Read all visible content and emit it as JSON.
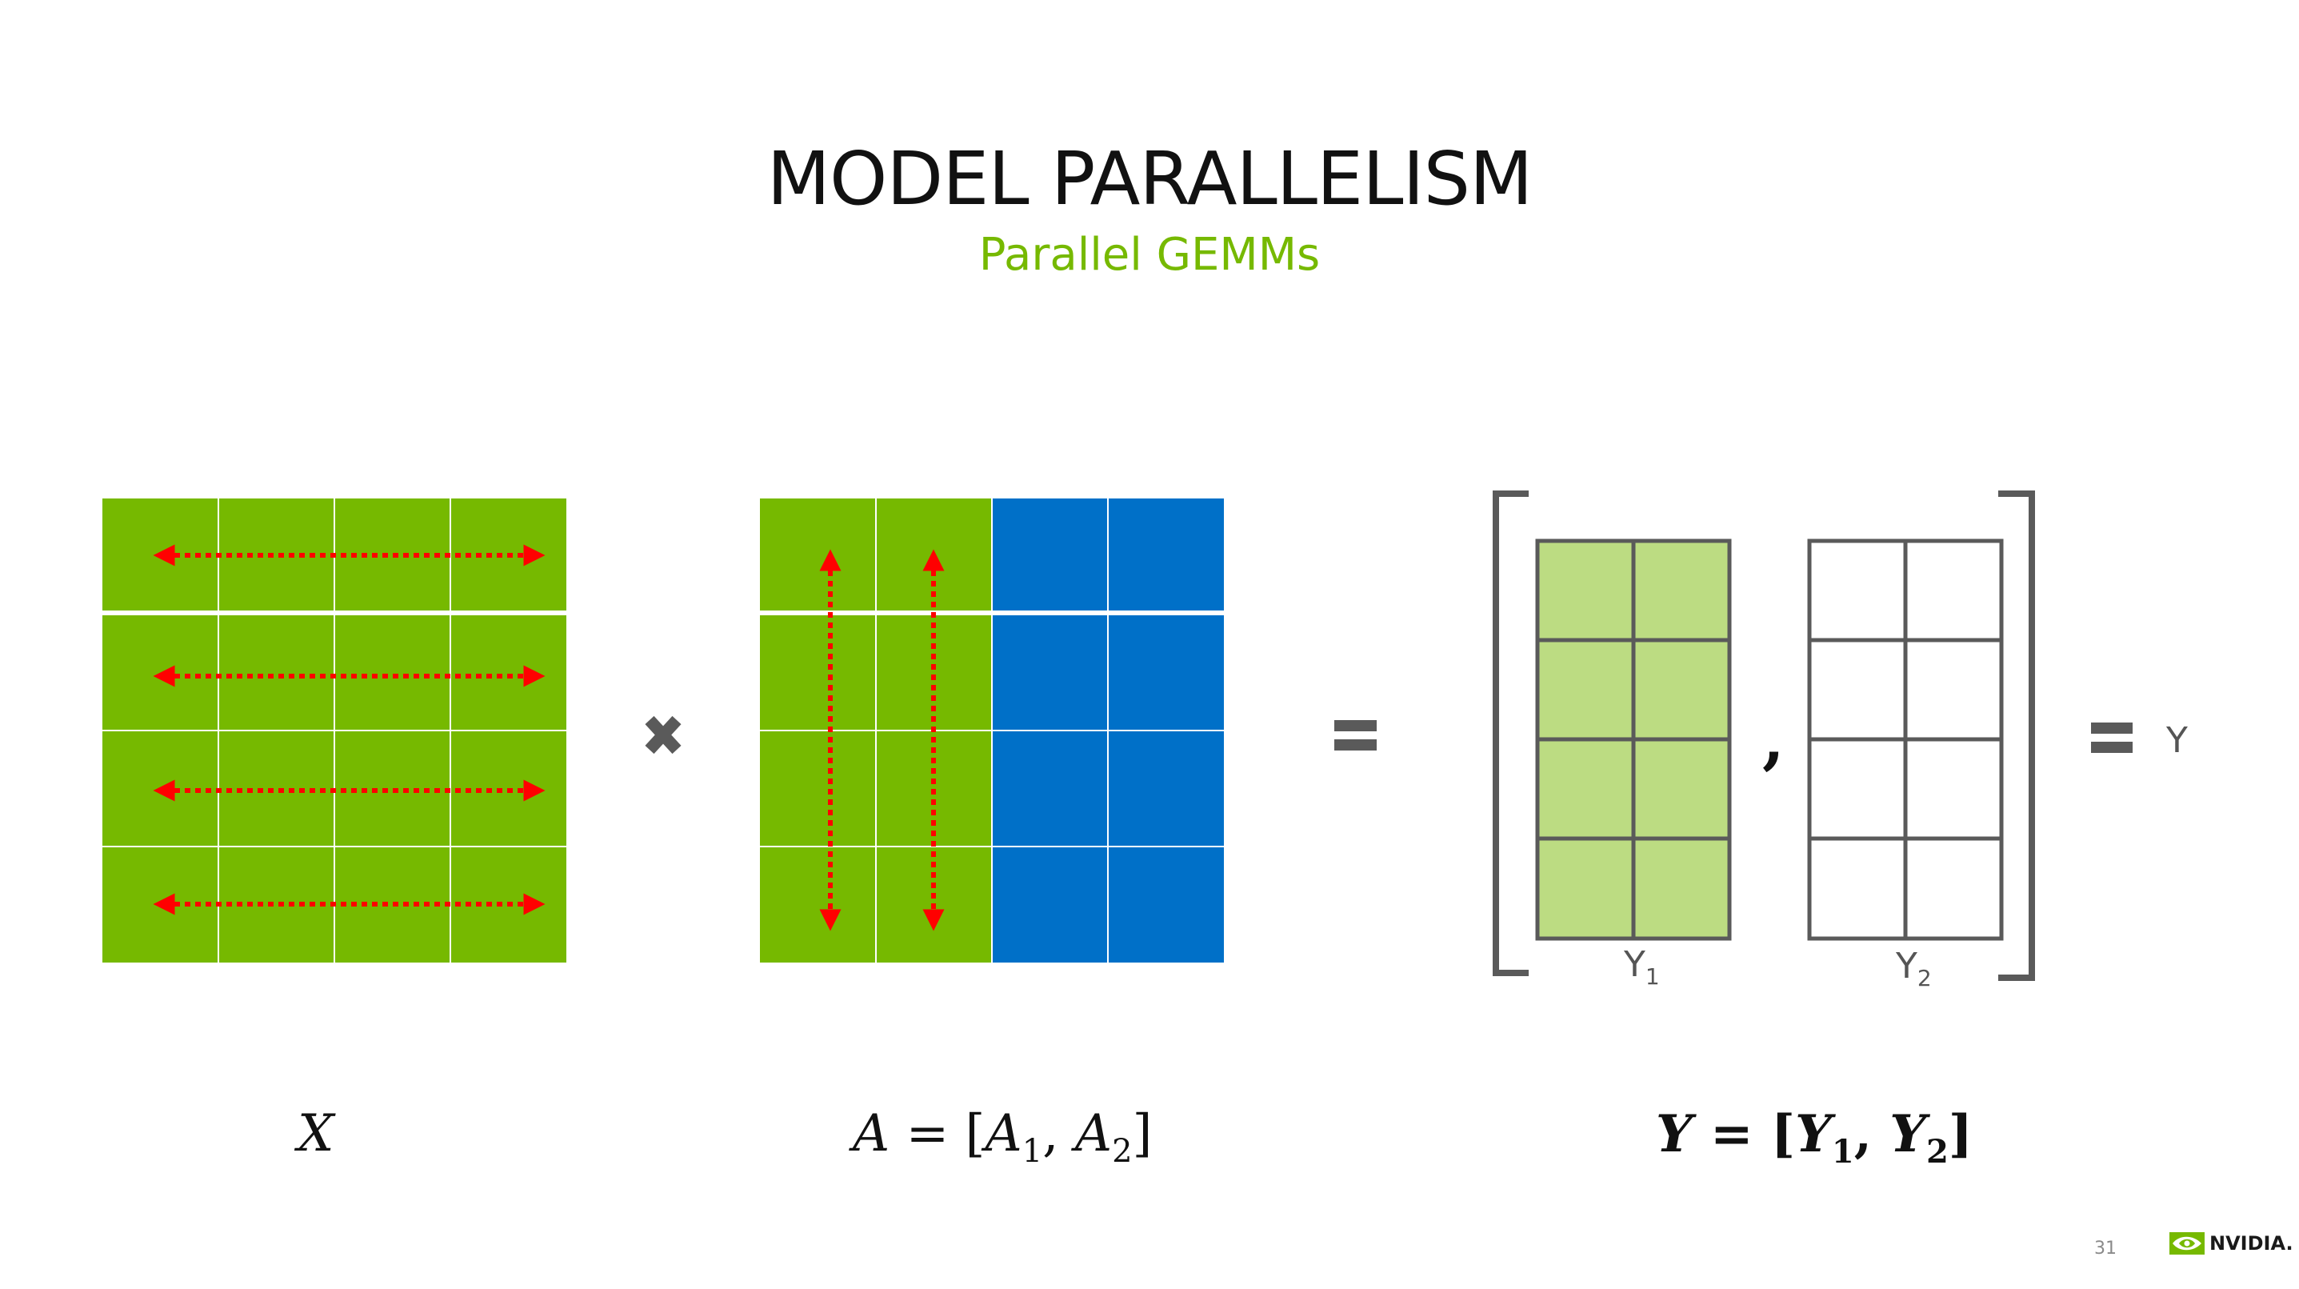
{
  "title": "MODEL PARALLELISM",
  "subtitle": "Parallel GEMMs",
  "colors": {
    "green": "#76b900",
    "blue": "#0070c8",
    "light_green": "#bcdc82",
    "arrow": "#ff0000",
    "grid_line": "#5a5a5a"
  },
  "matrix_x": {
    "rows": 4,
    "cols": 4,
    "arrows": "horizontal"
  },
  "matrix_a": {
    "rows": 4,
    "cols": 4,
    "green_cols": 2,
    "blue_cols": 2,
    "arrows": "vertical"
  },
  "operators": {
    "multiply": "multiply-icon",
    "equals": "equals-icon"
  },
  "result": {
    "y1_label": "Y",
    "y1_sub": "1",
    "y2_label": "Y",
    "y2_sub": "2",
    "separator": ",",
    "final_label": "Y"
  },
  "formulas": {
    "x": "X",
    "a_lhs": "A",
    "a_eq": " = [",
    "a1": "A",
    "a1_sub": "1",
    "a_comma": ", ",
    "a2": "A",
    "a2_sub": "2",
    "a_close": "]",
    "y_lhs": "Y",
    "y_eq": " = [",
    "y1": "Y",
    "y1_sub": "1",
    "y_comma": ", ",
    "y2": "Y",
    "y2_sub": "2",
    "y_close": "]"
  },
  "page_number": "31",
  "logo_text": "NVIDIA."
}
